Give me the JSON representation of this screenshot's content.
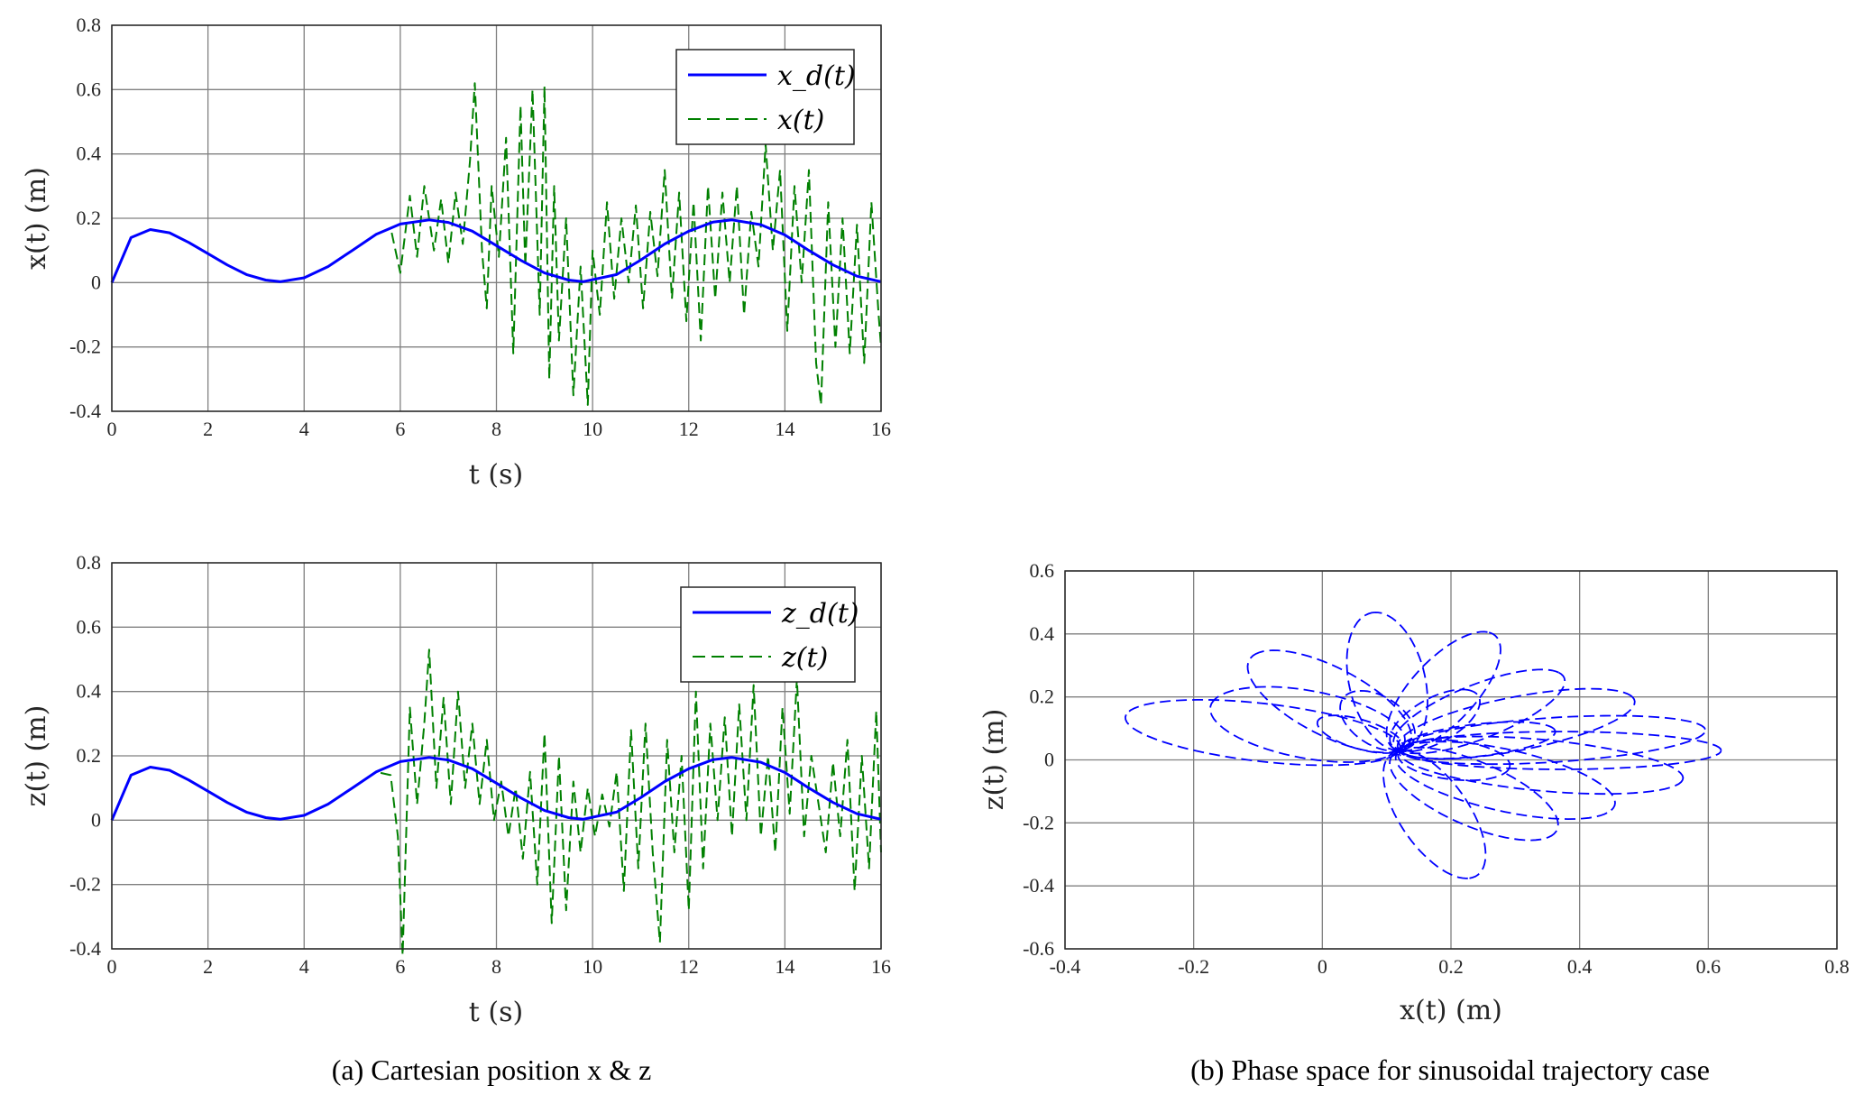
{
  "captions": {
    "a": "(a) Cartesian position x & z",
    "b": "(b) Phase space for sinusoidal trajectory case"
  },
  "colors": {
    "desired": "#0000ff",
    "actual": "#008000",
    "phase": "#0000ff",
    "grid": "#808080"
  },
  "chart_data": [
    {
      "id": "x_plot",
      "type": "line",
      "xlabel": "t (s)",
      "ylabel": "x(t) (m)",
      "xlim": [
        0,
        16
      ],
      "ylim": [
        -0.4,
        0.8
      ],
      "xticks": [
        0,
        2,
        4,
        6,
        8,
        10,
        12,
        14,
        16
      ],
      "xtick_labels": [
        "0",
        "2",
        "4",
        "6",
        "8",
        "10",
        "12",
        "14",
        "16"
      ],
      "yticks": [
        -0.4,
        -0.2,
        0,
        0.2,
        0.4,
        0.6,
        0.8
      ],
      "ytick_labels": [
        "-0.4",
        "-0.2",
        "0",
        "0.2",
        "0.4",
        "0.6",
        "0.8"
      ],
      "grid": true,
      "legend_position": "top-right",
      "series": [
        {
          "name": "x_d(t)",
          "style": "solid",
          "t": [
            0,
            0.4,
            0.8,
            1.2,
            1.6,
            2.0,
            2.4,
            2.8,
            3.2,
            3.5,
            4.0,
            4.5,
            5.0,
            5.5,
            6.0,
            6.6,
            7.0,
            7.5,
            8.0,
            8.5,
            9.0,
            9.5,
            9.8,
            10.5,
            11.0,
            11.5,
            12.0,
            12.5,
            12.9,
            13.5,
            14.0,
            14.5,
            15.0,
            15.5,
            16.0
          ],
          "values": [
            0,
            0.14,
            0.165,
            0.155,
            0.125,
            0.09,
            0.055,
            0.025,
            0.008,
            0.003,
            0.015,
            0.05,
            0.1,
            0.15,
            0.182,
            0.195,
            0.187,
            0.16,
            0.115,
            0.07,
            0.03,
            0.008,
            0.003,
            0.025,
            0.07,
            0.12,
            0.16,
            0.188,
            0.195,
            0.18,
            0.148,
            0.1,
            0.055,
            0.02,
            0.003
          ]
        },
        {
          "name": "x(t)",
          "style": "dashed",
          "t": [
            0,
            0.4,
            0.8,
            1.2,
            1.6,
            2.0,
            2.4,
            2.8,
            3.2,
            3.5,
            4.0,
            4.5,
            5.0,
            5.5,
            5.8,
            6.0,
            6.2,
            6.35,
            6.5,
            6.7,
            6.85,
            7.0,
            7.15,
            7.3,
            7.45,
            7.55,
            7.7,
            7.8,
            7.9,
            8.05,
            8.2,
            8.35,
            8.5,
            8.6,
            8.75,
            8.9,
            9.0,
            9.1,
            9.2,
            9.3,
            9.45,
            9.6,
            9.75,
            9.9,
            10.0,
            10.15,
            10.3,
            10.45,
            10.6,
            10.75,
            10.9,
            11.05,
            11.2,
            11.35,
            11.5,
            11.65,
            11.8,
            11.95,
            12.1,
            12.25,
            12.4,
            12.55,
            12.7,
            12.85,
            13.0,
            13.15,
            13.3,
            13.45,
            13.6,
            13.75,
            13.9,
            14.05,
            14.2,
            14.35,
            14.5,
            14.65,
            14.75,
            14.9,
            15.05,
            15.2,
            15.35,
            15.5,
            15.65,
            15.8,
            15.95,
            16.0
          ],
          "values": [
            0,
            0.14,
            0.165,
            0.155,
            0.125,
            0.09,
            0.055,
            0.025,
            0.008,
            0.003,
            0.015,
            0.05,
            0.1,
            0.15,
            0.17,
            0.03,
            0.27,
            0.08,
            0.3,
            0.1,
            0.26,
            0.06,
            0.28,
            0.12,
            0.38,
            0.62,
            0.1,
            -0.08,
            0.3,
            0.08,
            0.45,
            -0.22,
            0.55,
            0.05,
            0.6,
            -0.1,
            0.61,
            -0.3,
            0.3,
            -0.18,
            0.2,
            -0.35,
            0.05,
            -0.38,
            0.1,
            -0.1,
            0.25,
            -0.05,
            0.2,
            0.0,
            0.24,
            -0.08,
            0.22,
            0.02,
            0.35,
            -0.05,
            0.28,
            -0.12,
            0.25,
            -0.18,
            0.3,
            -0.05,
            0.28,
            0.0,
            0.3,
            -0.1,
            0.22,
            0.05,
            0.43,
            0.1,
            0.35,
            -0.15,
            0.3,
            0.0,
            0.35,
            -0.25,
            -0.38,
            0.25,
            -0.2,
            0.2,
            -0.22,
            0.18,
            -0.25,
            0.25,
            -0.1,
            -0.2
          ]
        }
      ]
    },
    {
      "id": "z_plot",
      "type": "line",
      "xlabel": "t (s)",
      "ylabel": "z(t) (m)",
      "xlim": [
        0,
        16
      ],
      "ylim": [
        -0.4,
        0.8
      ],
      "xticks": [
        0,
        2,
        4,
        6,
        8,
        10,
        12,
        14,
        16
      ],
      "xtick_labels": [
        "0",
        "2",
        "4",
        "6",
        "8",
        "10",
        "12",
        "14",
        "16"
      ],
      "yticks": [
        -0.4,
        -0.2,
        0,
        0.2,
        0.4,
        0.6,
        0.8
      ],
      "ytick_labels": [
        "-0.4",
        "-0.2",
        "0",
        "0.2",
        "0.4",
        "0.6",
        "0.8"
      ],
      "grid": true,
      "legend_position": "top-right",
      "series": [
        {
          "name": "z_d(t)",
          "style": "solid",
          "t": [
            0,
            0.4,
            0.8,
            1.2,
            1.6,
            2.0,
            2.4,
            2.8,
            3.2,
            3.5,
            4.0,
            4.5,
            5.0,
            5.5,
            6.0,
            6.6,
            7.0,
            7.5,
            8.0,
            8.5,
            9.0,
            9.5,
            9.8,
            10.5,
            11.0,
            11.5,
            12.0,
            12.5,
            12.9,
            13.5,
            14.0,
            14.5,
            15.0,
            15.5,
            16.0
          ],
          "values": [
            0,
            0.14,
            0.165,
            0.155,
            0.125,
            0.09,
            0.055,
            0.025,
            0.008,
            0.003,
            0.015,
            0.05,
            0.1,
            0.15,
            0.182,
            0.195,
            0.187,
            0.16,
            0.115,
            0.07,
            0.03,
            0.008,
            0.003,
            0.025,
            0.07,
            0.12,
            0.16,
            0.188,
            0.195,
            0.18,
            0.148,
            0.1,
            0.055,
            0.02,
            0.003
          ]
        },
        {
          "name": "z(t)",
          "style": "dashed",
          "t": [
            0,
            0.4,
            0.8,
            1.2,
            1.6,
            2.0,
            2.4,
            2.8,
            3.2,
            3.5,
            4.0,
            4.5,
            5.0,
            5.5,
            5.8,
            5.95,
            6.05,
            6.2,
            6.35,
            6.5,
            6.6,
            6.75,
            6.9,
            7.05,
            7.2,
            7.35,
            7.5,
            7.65,
            7.8,
            7.95,
            8.1,
            8.25,
            8.4,
            8.55,
            8.7,
            8.85,
            9.0,
            9.15,
            9.3,
            9.45,
            9.6,
            9.75,
            9.9,
            10.05,
            10.2,
            10.35,
            10.5,
            10.65,
            10.8,
            10.95,
            11.1,
            11.25,
            11.4,
            11.55,
            11.7,
            11.85,
            12.0,
            12.15,
            12.3,
            12.45,
            12.6,
            12.75,
            12.9,
            13.05,
            13.2,
            13.35,
            13.5,
            13.65,
            13.8,
            13.95,
            14.1,
            14.25,
            14.4,
            14.55,
            14.7,
            14.85,
            15.0,
            15.15,
            15.3,
            15.45,
            15.6,
            15.75,
            15.9,
            16.0
          ],
          "values": [
            0,
            0.14,
            0.165,
            0.155,
            0.125,
            0.09,
            0.055,
            0.025,
            0.008,
            0.003,
            0.015,
            0.05,
            0.1,
            0.15,
            0.14,
            -0.05,
            -0.42,
            0.35,
            0.05,
            0.3,
            0.53,
            0.1,
            0.38,
            0.05,
            0.4,
            0.1,
            0.3,
            0.05,
            0.25,
            0.0,
            0.12,
            -0.05,
            0.1,
            -0.12,
            0.15,
            -0.2,
            0.27,
            -0.32,
            0.2,
            -0.28,
            0.12,
            -0.1,
            0.1,
            -0.05,
            0.08,
            -0.02,
            0.15,
            -0.22,
            0.28,
            -0.15,
            0.3,
            -0.1,
            -0.38,
            0.25,
            -0.1,
            0.2,
            -0.28,
            0.4,
            -0.15,
            0.3,
            0.0,
            0.32,
            -0.05,
            0.36,
            0.0,
            0.42,
            -0.05,
            0.2,
            -0.1,
            0.35,
            0.02,
            0.44,
            -0.05,
            0.2,
            0.05,
            -0.1,
            0.18,
            -0.05,
            0.25,
            -0.22,
            0.2,
            -0.15,
            0.34,
            -0.1
          ]
        }
      ]
    },
    {
      "id": "phase_plot",
      "type": "line",
      "xlabel": "x(t) (m)",
      "ylabel": "z(t) (m)",
      "xlim": [
        -0.4,
        0.8
      ],
      "ylim": [
        -0.6,
        0.6
      ],
      "xticks": [
        -0.4,
        -0.2,
        0,
        0.2,
        0.4,
        0.6,
        0.8
      ],
      "xtick_labels": [
        "-0.4",
        "-0.2",
        "0",
        "0.2",
        "0.4",
        "0.6",
        "0.8"
      ],
      "yticks": [
        -0.6,
        -0.4,
        -0.2,
        0,
        0.2,
        0.4,
        0.6
      ],
      "ytick_labels": [
        "-0.6",
        "-0.4",
        "-0.2",
        "0",
        "0.2",
        "0.4",
        "0.6"
      ],
      "grid": true,
      "center": [
        0.12,
        0.03
      ],
      "loops": [
        {
          "ang": 0,
          "a": 0.5,
          "b": 0.06
        },
        {
          "ang": 8,
          "a": 0.48,
          "b": 0.07
        },
        {
          "ang": -12,
          "a": 0.45,
          "b": 0.08
        },
        {
          "ang": 25,
          "a": 0.4,
          "b": 0.08
        },
        {
          "ang": -30,
          "a": 0.38,
          "b": 0.09
        },
        {
          "ang": 45,
          "a": 0.35,
          "b": 0.07
        },
        {
          "ang": -50,
          "a": 0.36,
          "b": 0.08
        },
        {
          "ang": 70,
          "a": 0.4,
          "b": 0.06
        },
        {
          "ang": -75,
          "a": 0.42,
          "b": 0.06
        },
        {
          "ang": 95,
          "a": 0.44,
          "b": 0.06
        },
        {
          "ang": 125,
          "a": 0.38,
          "b": 0.08
        },
        {
          "ang": 150,
          "a": 0.33,
          "b": 0.1
        },
        {
          "ang": 165,
          "a": 0.44,
          "b": 0.09
        },
        {
          "ang": 15,
          "a": 0.25,
          "b": 0.05
        },
        {
          "ang": 110,
          "a": 0.2,
          "b": 0.05
        },
        {
          "ang": -20,
          "a": 0.18,
          "b": 0.06
        },
        {
          "ang": 60,
          "a": 0.22,
          "b": 0.05
        },
        {
          "ang": 140,
          "a": 0.16,
          "b": 0.04
        }
      ]
    }
  ]
}
